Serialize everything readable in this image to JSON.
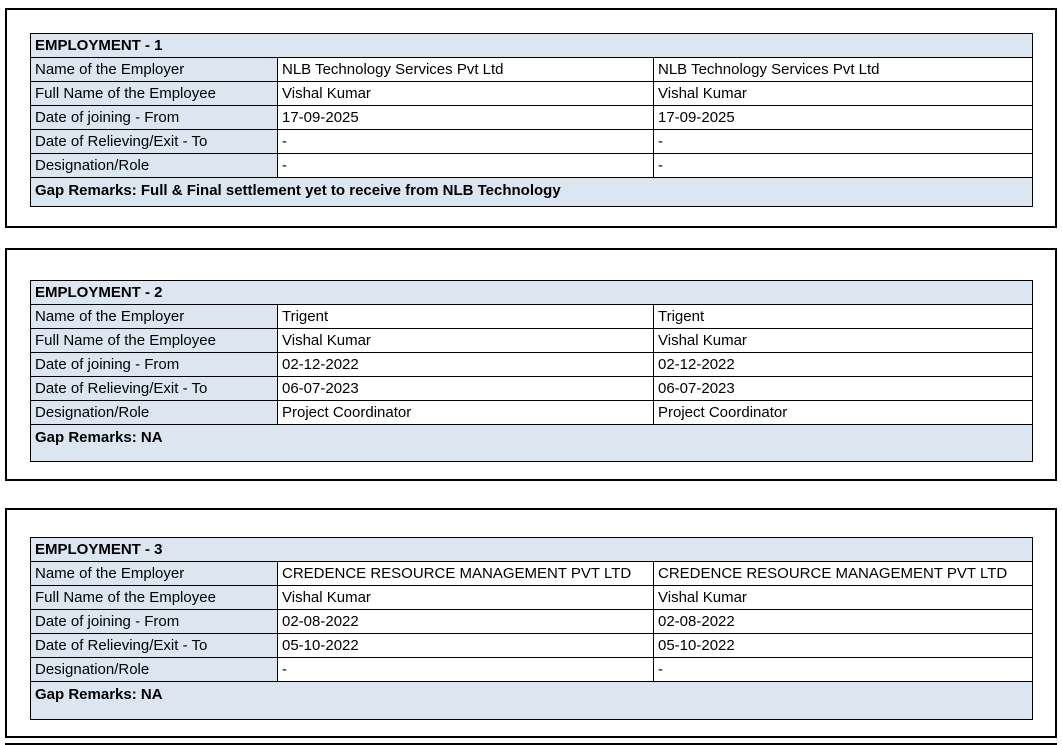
{
  "colors": {
    "cell_fill": "#dce6f1",
    "border": "#000000",
    "page_background": "#ffffff",
    "text": "#000000"
  },
  "employments": [
    {
      "title": "EMPLOYMENT - 1",
      "rows": [
        {
          "label": "Name of the Employer",
          "value1": "NLB Technology Services Pvt Ltd",
          "value2": "NLB Technology Services Pvt Ltd"
        },
        {
          "label": "Full Name of the Employee",
          "value1": "Vishal Kumar",
          "value2": "Vishal Kumar"
        },
        {
          "label": "Date of joining - From",
          "value1": "17-09-2025",
          "value2": "17-09-2025"
        },
        {
          "label": "Date of Relieving/Exit - To",
          "value1": "-",
          "value2": "-"
        },
        {
          "label": "Designation/Role",
          "value1": "-",
          "value2": "-"
        }
      ],
      "gap_remarks": "Gap Remarks: Full & Final settlement yet to receive from NLB Technology"
    },
    {
      "title": "EMPLOYMENT - 2",
      "rows": [
        {
          "label": "Name of the Employer",
          "value1": "Trigent",
          "value2": "Trigent"
        },
        {
          "label": "Full Name of the Employee",
          "value1": "Vishal Kumar",
          "value2": "Vishal Kumar"
        },
        {
          "label": "Date of joining - From",
          "value1": "02-12-2022",
          "value2": "02-12-2022"
        },
        {
          "label": "Date of Relieving/Exit - To",
          "value1": "06-07-2023",
          "value2": "06-07-2023"
        },
        {
          "label": "Designation/Role",
          "value1": "Project Coordinator",
          "value2": "Project Coordinator"
        }
      ],
      "gap_remarks": "Gap Remarks: NA"
    },
    {
      "title": "EMPLOYMENT - 3",
      "rows": [
        {
          "label": "Name of the Employer",
          "value1": "CREDENCE RESOURCE MANAGEMENT PVT LTD",
          "value2": "CREDENCE RESOURCE MANAGEMENT PVT LTD"
        },
        {
          "label": "Full Name of the Employee",
          "value1": "Vishal Kumar",
          "value2": "Vishal Kumar"
        },
        {
          "label": "Date of joining - From",
          "value1": "02-08-2022",
          "value2": "02-08-2022"
        },
        {
          "label": "Date of Relieving/Exit - To",
          "value1": "05-10-2022",
          "value2": "05-10-2022"
        },
        {
          "label": "Designation/Role",
          "value1": "-",
          "value2": "-"
        }
      ],
      "gap_remarks": "Gap Remarks: NA"
    }
  ]
}
